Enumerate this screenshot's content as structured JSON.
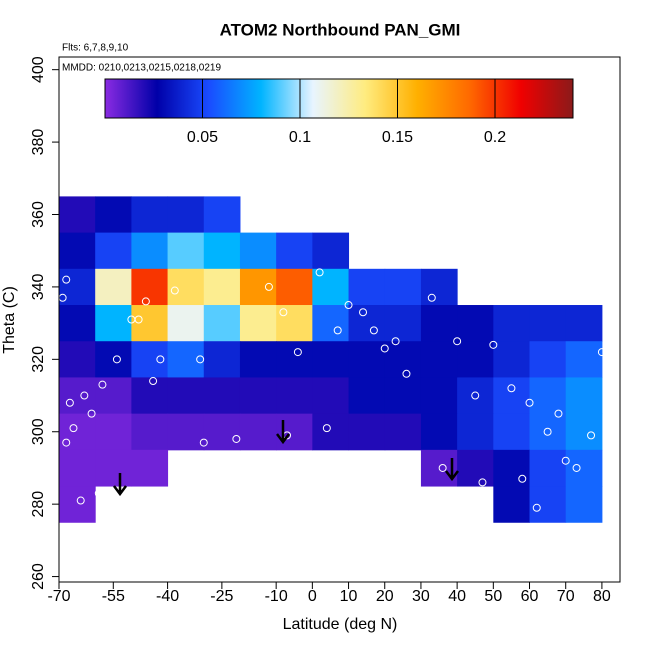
{
  "chart_data": {
    "type": "heatmap",
    "title": "ATOM2 Northbound PAN_GMI",
    "subtitle": "Flts: 6,7,8,9,10",
    "annotation": "MMDD: 0210,0213,0215,0218,0219",
    "x_label": "Latitude (deg N)",
    "y_label": "Theta (C)",
    "xlim": [
      -70,
      85
    ],
    "ylim": [
      258.5,
      403.5
    ],
    "xticks": [
      -70,
      -55,
      -40,
      -25,
      -10,
      0,
      10,
      20,
      30,
      40,
      50,
      60,
      70,
      80
    ],
    "yticks": [
      260,
      280,
      300,
      320,
      340,
      360,
      380,
      400
    ],
    "x": [
      -65,
      -55,
      -45,
      -35,
      -25,
      -15,
      -5,
      5,
      15,
      25,
      35,
      45,
      55,
      65,
      75
    ],
    "y": [
      360,
      350,
      340,
      330,
      320,
      310,
      300,
      290,
      280
    ],
    "cell_width": 10,
    "cell_height": 10,
    "values": [
      [
        0.02,
        0.03,
        0.04,
        0.04,
        0.05,
        null,
        null,
        null,
        null,
        null,
        null,
        null,
        null,
        null,
        null
      ],
      [
        0.03,
        0.05,
        0.07,
        0.09,
        0.08,
        0.07,
        0.05,
        0.04,
        null,
        null,
        null,
        null,
        null,
        null,
        null
      ],
      [
        0.04,
        0.12,
        0.2,
        0.14,
        0.13,
        0.17,
        0.19,
        0.08,
        0.05,
        0.05,
        0.04,
        null,
        null,
        null,
        null
      ],
      [
        0.03,
        0.08,
        0.15,
        0.11,
        0.09,
        0.13,
        0.14,
        0.06,
        0.04,
        0.04,
        0.03,
        0.03,
        0.04,
        0.04,
        0.04
      ],
      [
        0.02,
        0.03,
        0.05,
        0.06,
        0.04,
        0.03,
        0.03,
        0.03,
        0.03,
        0.03,
        0.03,
        0.03,
        0.04,
        0.05,
        0.06
      ],
      [
        0.01,
        0.01,
        0.02,
        0.02,
        0.02,
        0.02,
        0.02,
        0.02,
        0.03,
        0.03,
        0.03,
        0.04,
        0.05,
        0.06,
        0.07
      ],
      [
        0.005,
        0.005,
        0.01,
        0.01,
        0.01,
        0.01,
        0.01,
        0.02,
        0.02,
        0.02,
        0.03,
        0.04,
        0.05,
        0.06,
        0.07
      ],
      [
        0.005,
        0.005,
        0.005,
        null,
        null,
        null,
        null,
        null,
        null,
        null,
        0.01,
        0.02,
        0.03,
        0.05,
        0.06
      ],
      [
        0.005,
        null,
        null,
        null,
        null,
        null,
        null,
        null,
        null,
        null,
        null,
        null,
        0.03,
        0.05,
        0.06
      ]
    ],
    "colorbar": {
      "lim": [
        0,
        0.24
      ],
      "ticks": [
        0.05,
        0.1,
        0.15,
        0.2
      ],
      "colors": [
        "#8a2be2",
        "#0000a8",
        "#1a4cff",
        "#00b4ff",
        "#e8f4ff",
        "#ffec80",
        "#ffb000",
        "#ff6a00",
        "#f00000",
        "#8b1a1a"
      ]
    },
    "points": {
      "color": "#ffffff",
      "x": [
        -68,
        -69,
        -67,
        -66,
        -68,
        -63,
        -61,
        -58,
        -64,
        -59,
        -54,
        -50,
        -48,
        -46,
        -44,
        -42,
        -38,
        -31,
        -30,
        -21,
        -12,
        -8,
        -7,
        -4,
        2,
        4,
        7,
        10,
        14,
        17,
        20,
        23,
        26,
        28,
        33,
        36,
        40,
        45,
        47,
        50,
        55,
        58,
        60,
        62,
        65,
        68,
        70,
        73,
        77,
        80
      ],
      "y": [
        342,
        337,
        308,
        301,
        297,
        310,
        305,
        313,
        281,
        283,
        320,
        331,
        331,
        336,
        314,
        320,
        339,
        320,
        297,
        298,
        340,
        333,
        299,
        322,
        344,
        301,
        328,
        335,
        333,
        328,
        323,
        325,
        316,
        292,
        337,
        290,
        325,
        310,
        286,
        324,
        312,
        287,
        308,
        279,
        300,
        305,
        292,
        290,
        299,
        322
      ]
    }
  }
}
